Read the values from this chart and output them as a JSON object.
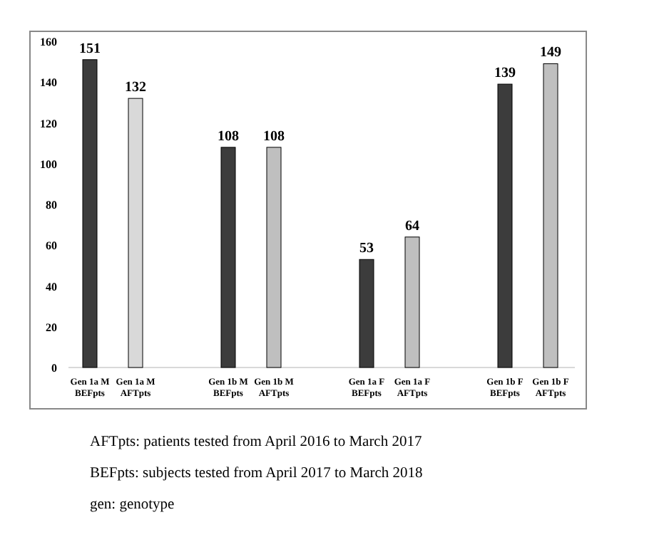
{
  "chart_data": {
    "type": "bar",
    "categories": [
      "Gen 1a M BEFpts",
      "Gen 1a M AFTpts",
      "Gen 1b M BEFpts",
      "Gen 1b M AFTpts",
      "Gen 1a F BEFpts",
      "Gen 1a F AFTpts",
      "Gen 1b F BEFpts",
      "Gen 1b F AFTpts"
    ],
    "values": [
      151,
      132,
      108,
      108,
      53,
      64,
      139,
      149
    ],
    "colors": [
      "#3c3c3c",
      "#d9d9d9",
      "#3c3c3c",
      "#bfbfbf",
      "#3c3c3c",
      "#bfbfbf",
      "#3c3c3c",
      "#bfbfbf"
    ],
    "ylim": [
      0,
      160
    ],
    "yticks": [
      0,
      20,
      40,
      60,
      80,
      100,
      120,
      140,
      160
    ],
    "data_labels": true,
    "annotations": [
      "AFTpts: patients tested from April 2016 to March 2017",
      "BEFpts: subjects tested from April 2017 to March 2018",
      "gen: genotype"
    ]
  }
}
